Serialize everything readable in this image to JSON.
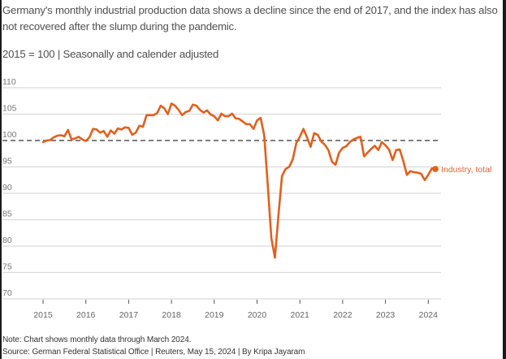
{
  "subtitle": "Germany's monthly industrial production data shows a decline since the end of 2017, and the index has also not recovered after the slump during the pandemic.",
  "unit_note": "2015 = 100 | Seasonally and calender adjusted",
  "note": "Note: Chart shows monthly data through March 2024.",
  "source": "Source: German Federal Statistical Office | Reuters, May 15, 2024 | By Kripa Jayaram",
  "colors": {
    "series": "#e0601e",
    "reference_line": "#555555",
    "grid": "#d9d9d9",
    "label": "#e0643a"
  },
  "chart_data": {
    "type": "line",
    "title": "Germany's monthly industrial production",
    "xlabel": "",
    "ylabel": "",
    "ylim": [
      70,
      110
    ],
    "yticks": [
      110,
      105,
      100,
      95,
      90,
      85,
      80,
      75,
      70
    ],
    "ytick_labels": [
      "110",
      "105",
      "100",
      "95",
      "90",
      "85",
      "80",
      "75",
      "70"
    ],
    "xlim": [
      2014.7,
      2024.45
    ],
    "xticks": [
      2015,
      2016,
      2017,
      2018,
      2019,
      2020,
      2021,
      2022,
      2023,
      2024
    ],
    "xtick_labels": [
      "2015",
      "2016",
      "2017",
      "2018",
      "2019",
      "2020",
      "2021",
      "2022",
      "2023",
      "2024"
    ],
    "grid": true,
    "reference_line": {
      "value": 100,
      "style": "dashed"
    },
    "legend": "inline-end-label",
    "start": "2015-01",
    "frequency": "monthly",
    "series": [
      {
        "name": "Industry, total",
        "values": [
          99.7,
          100.0,
          100.1,
          100.6,
          100.9,
          101.0,
          100.8,
          102.0,
          100.2,
          100.4,
          100.7,
          100.2,
          99.9,
          100.6,
          102.2,
          102.1,
          101.5,
          101.8,
          100.7,
          101.9,
          101.3,
          102.3,
          102.1,
          102.5,
          102.4,
          101.1,
          101.5,
          102.8,
          102.6,
          104.8,
          104.8,
          104.8,
          105.2,
          106.6,
          106.1,
          105.0,
          107.0,
          106.6,
          105.8,
          104.8,
          105.4,
          105.6,
          106.8,
          106.6,
          105.8,
          105.3,
          105.7,
          104.9,
          104.6,
          103.8,
          105.1,
          104.6,
          104.6,
          105.1,
          104.2,
          104.1,
          103.6,
          103.1,
          103.1,
          102.2,
          103.8,
          104.3,
          101.0,
          91.5,
          81.5,
          77.8,
          86.0,
          93.3,
          94.6,
          95.0,
          96.4,
          99.5,
          100.7,
          102.2,
          100.6,
          98.8,
          101.4,
          101.1,
          99.8,
          99.2,
          98.2,
          96.0,
          95.4,
          97.7,
          98.6,
          98.9,
          99.7,
          100.2,
          100.5,
          100.7,
          97.0,
          97.7,
          98.4,
          99.0,
          98.2,
          99.7,
          99.1,
          98.3,
          96.3,
          98.2,
          98.3,
          96.1,
          93.5,
          94.2,
          94.0,
          93.9,
          93.7,
          92.5,
          93.5,
          94.7,
          94.6
        ]
      }
    ]
  }
}
